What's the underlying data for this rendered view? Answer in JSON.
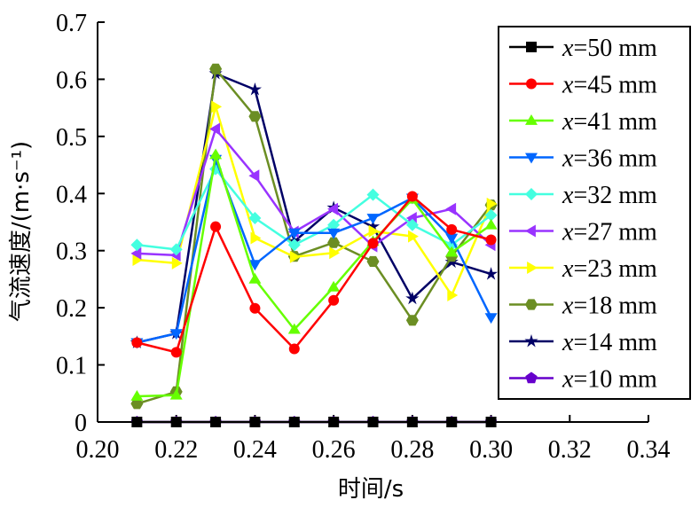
{
  "chart_data": {
    "type": "line",
    "xlabel": "时间/s",
    "ylabel": "气流速度/(m·s⁻¹)",
    "xlim": [
      0.2,
      0.34
    ],
    "ylim": [
      0,
      0.7
    ],
    "xticks": [
      "0.20",
      "0.22",
      "0.24",
      "0.26",
      "0.28",
      "0.30",
      "0.32",
      "0.34"
    ],
    "yticks": [
      "0",
      "0.1",
      "0.2",
      "0.3",
      "0.4",
      "0.5",
      "0.6",
      "0.7"
    ],
    "x": [
      0.21,
      0.22,
      0.23,
      0.24,
      0.25,
      0.26,
      0.27,
      0.28,
      0.29,
      0.3
    ],
    "legend": {
      "position": "top-right",
      "prefix": "x",
      "suffix": "="
    },
    "series": [
      {
        "name": "50 mm",
        "color": "#000000",
        "marker": "square",
        "values": [
          0,
          0,
          0,
          0,
          0,
          0,
          0,
          0,
          0,
          0
        ]
      },
      {
        "name": "45 mm",
        "color": "#ff0000",
        "marker": "circle",
        "values": [
          0.139,
          0.122,
          0.342,
          0.199,
          0.128,
          0.213,
          0.313,
          0.395,
          0.337,
          0.319
        ]
      },
      {
        "name": "41 mm",
        "color": "#66ff00",
        "marker": "triangle-up",
        "values": [
          0.045,
          0.047,
          0.468,
          0.25,
          0.162,
          0.236,
          0.316,
          0.39,
          0.297,
          0.345
        ]
      },
      {
        "name": "36 mm",
        "color": "#0066ff",
        "marker": "triangle-down",
        "values": [
          0.139,
          0.155,
          0.46,
          0.276,
          0.331,
          0.331,
          0.357,
          0.392,
          0.322,
          0.183
        ]
      },
      {
        "name": "32 mm",
        "color": "#44ffe0",
        "marker": "diamond",
        "values": [
          0.31,
          0.302,
          0.443,
          0.357,
          0.31,
          0.345,
          0.398,
          0.345,
          0.31,
          0.362
        ]
      },
      {
        "name": "27 mm",
        "color": "#9933ff",
        "marker": "triangle-left",
        "values": [
          0.295,
          0.292,
          0.513,
          0.431,
          0.333,
          0.373,
          0.308,
          0.357,
          0.373,
          0.31
        ]
      },
      {
        "name": "23 mm",
        "color": "#ffff00",
        "marker": "triangle-right",
        "values": [
          0.284,
          0.278,
          0.552,
          0.322,
          0.289,
          0.296,
          0.334,
          0.325,
          0.222,
          0.382
        ]
      },
      {
        "name": "18 mm",
        "color": "#6b8e23",
        "marker": "hexagon",
        "values": [
          0.032,
          0.053,
          0.618,
          0.535,
          0.29,
          0.314,
          0.281,
          0.178,
          0.29,
          0.38
        ]
      },
      {
        "name": "14 mm",
        "color": "#000066",
        "marker": "star",
        "values": [
          0.139,
          0.155,
          0.61,
          0.582,
          0.316,
          0.375,
          0.342,
          0.216,
          0.28,
          0.259
        ]
      },
      {
        "name": "10 mm",
        "color": "#6600cc",
        "marker": "pentagon",
        "values": [
          0,
          0,
          0,
          0,
          0,
          0,
          0,
          0,
          0,
          0
        ]
      }
    ]
  }
}
